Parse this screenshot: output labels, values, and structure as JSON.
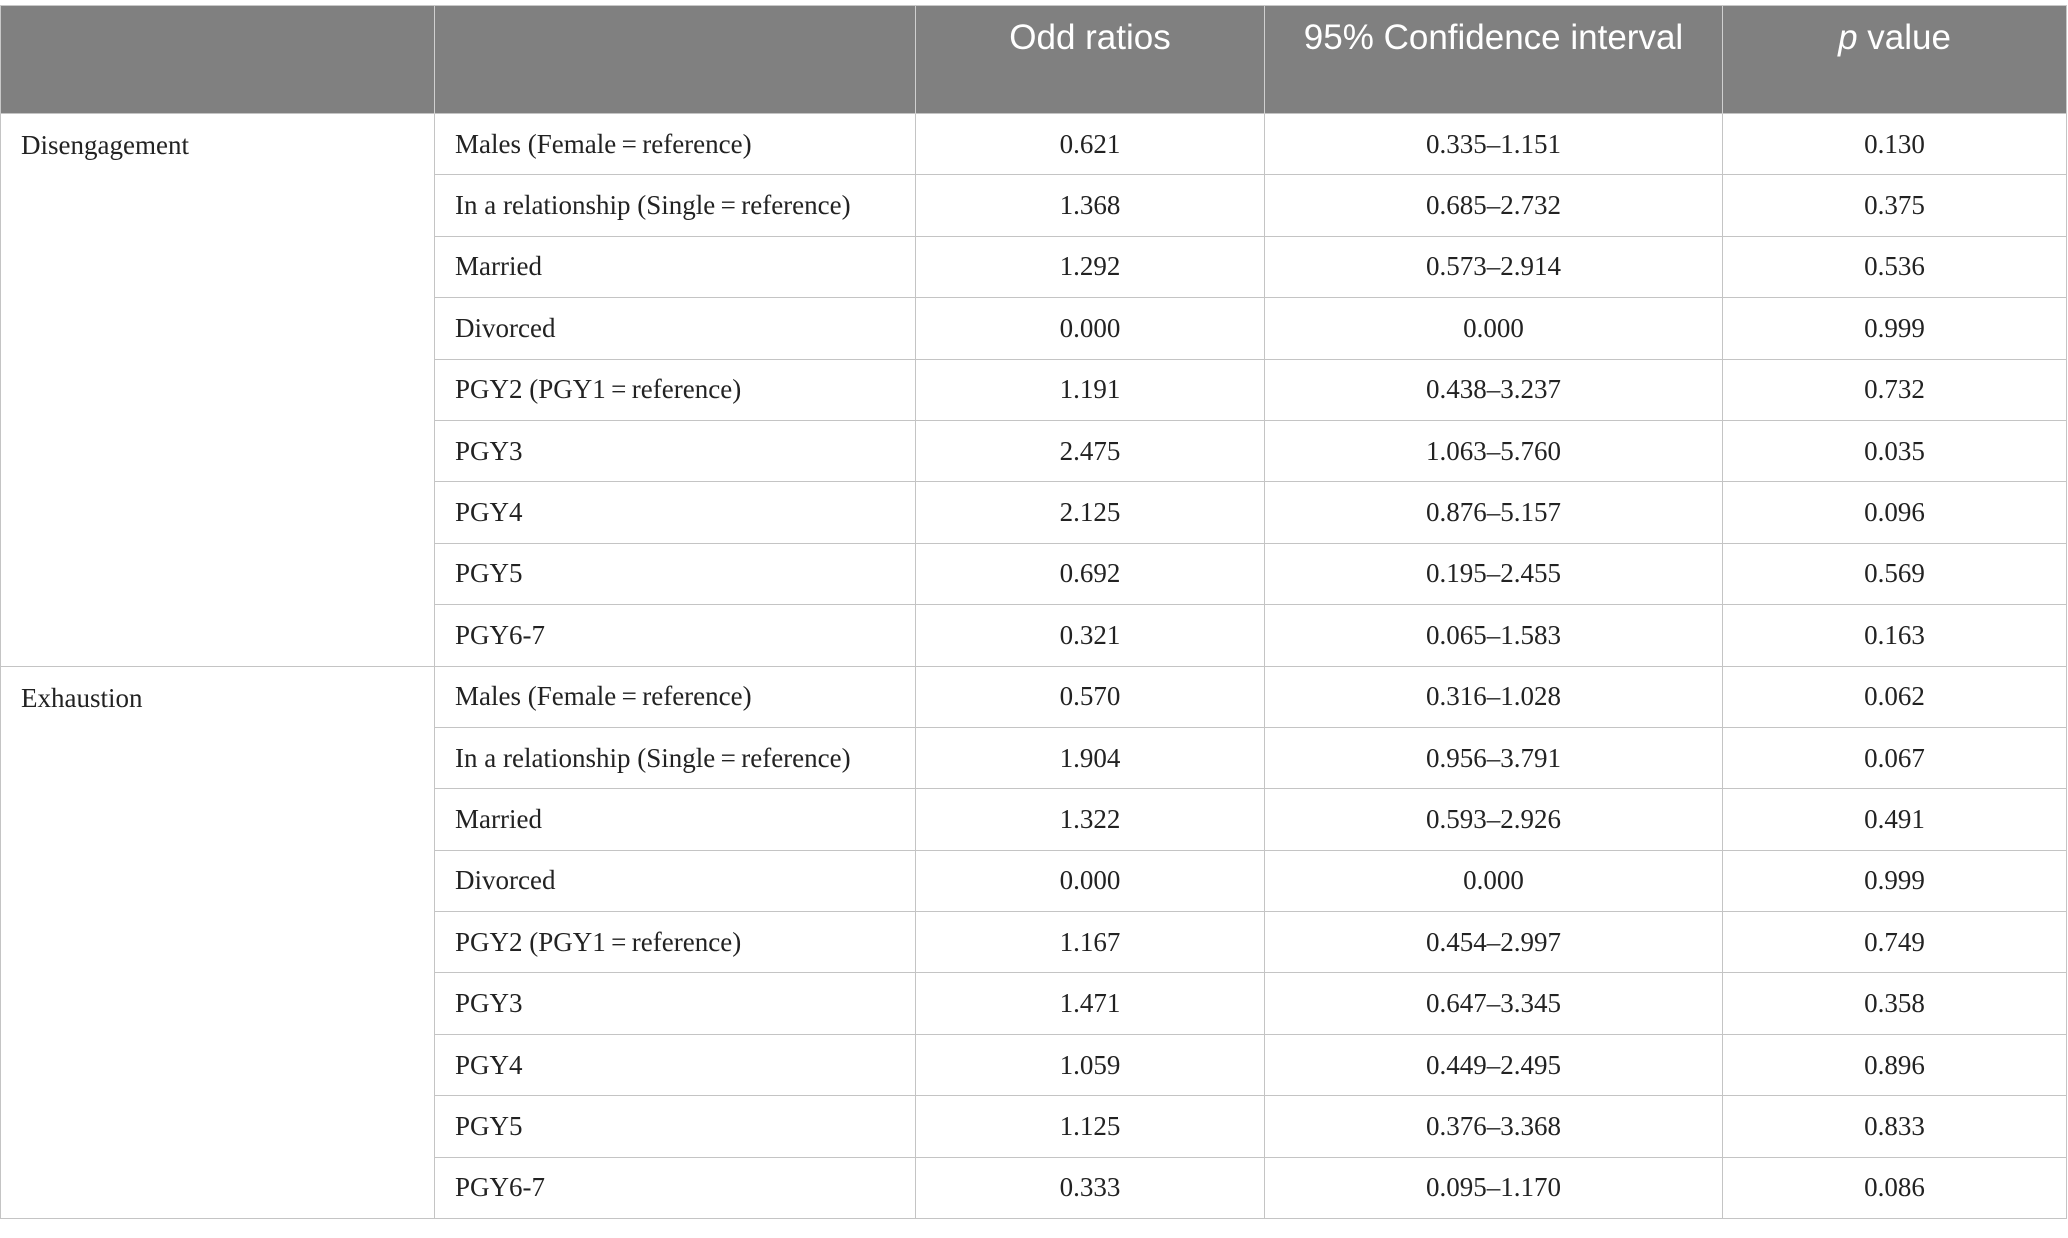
{
  "header": {
    "col0": "",
    "col1": "",
    "col2": "Odd ratios",
    "col3": "95% Confidence interval",
    "col4_italic": "p",
    "col4_rest": " value"
  },
  "groups": [
    {
      "name": "Disengagement",
      "rows": [
        {
          "label": "Males (Female = reference)",
          "or": "0.621",
          "ci": "0.335–1.151",
          "p": "0.130"
        },
        {
          "label": "In a relationship (Single = reference)",
          "or": "1.368",
          "ci": "0.685–2.732",
          "p": "0.375"
        },
        {
          "label": "Married",
          "or": "1.292",
          "ci": "0.573–2.914",
          "p": "0.536"
        },
        {
          "label": "Divorced",
          "or": "0.000",
          "ci": "0.000",
          "p": "0.999"
        },
        {
          "label": "PGY2 (PGY1 = reference)",
          "or": "1.191",
          "ci": "0.438–3.237",
          "p": "0.732"
        },
        {
          "label": "PGY3",
          "or": "2.475",
          "ci": "1.063–5.760",
          "p": "0.035"
        },
        {
          "label": "PGY4",
          "or": "2.125",
          "ci": "0.876–5.157",
          "p": "0.096"
        },
        {
          "label": "PGY5",
          "or": "0.692",
          "ci": "0.195–2.455",
          "p": "0.569"
        },
        {
          "label": "PGY6-7",
          "or": "0.321",
          "ci": "0.065–1.583",
          "p": "0.163"
        }
      ]
    },
    {
      "name": "Exhaustion",
      "rows": [
        {
          "label": "Males (Female = reference)",
          "or": "0.570",
          "ci": "0.316–1.028",
          "p": "0.062"
        },
        {
          "label": "In a relationship (Single = reference)",
          "or": "1.904",
          "ci": "0.956–3.791",
          "p": "0.067"
        },
        {
          "label": "Married",
          "or": "1.322",
          "ci": "0.593–2.926",
          "p": "0.491"
        },
        {
          "label": "Divorced",
          "or": "0.000",
          "ci": "0.000",
          "p": "0.999"
        },
        {
          "label": "PGY2 (PGY1 = reference)",
          "or": "1.167",
          "ci": "0.454–2.997",
          "p": "0.749"
        },
        {
          "label": "PGY3",
          "or": "1.471",
          "ci": "0.647–3.345",
          "p": "0.358"
        },
        {
          "label": "PGY4",
          "or": "1.059",
          "ci": "0.449–2.495",
          "p": "0.896"
        },
        {
          "label": "PGY5",
          "or": "1.125",
          "ci": "0.376–3.368",
          "p": "0.833"
        },
        {
          "label": "PGY6-7",
          "or": "0.333",
          "ci": "0.095–1.170",
          "p": "0.086"
        }
      ]
    }
  ]
}
